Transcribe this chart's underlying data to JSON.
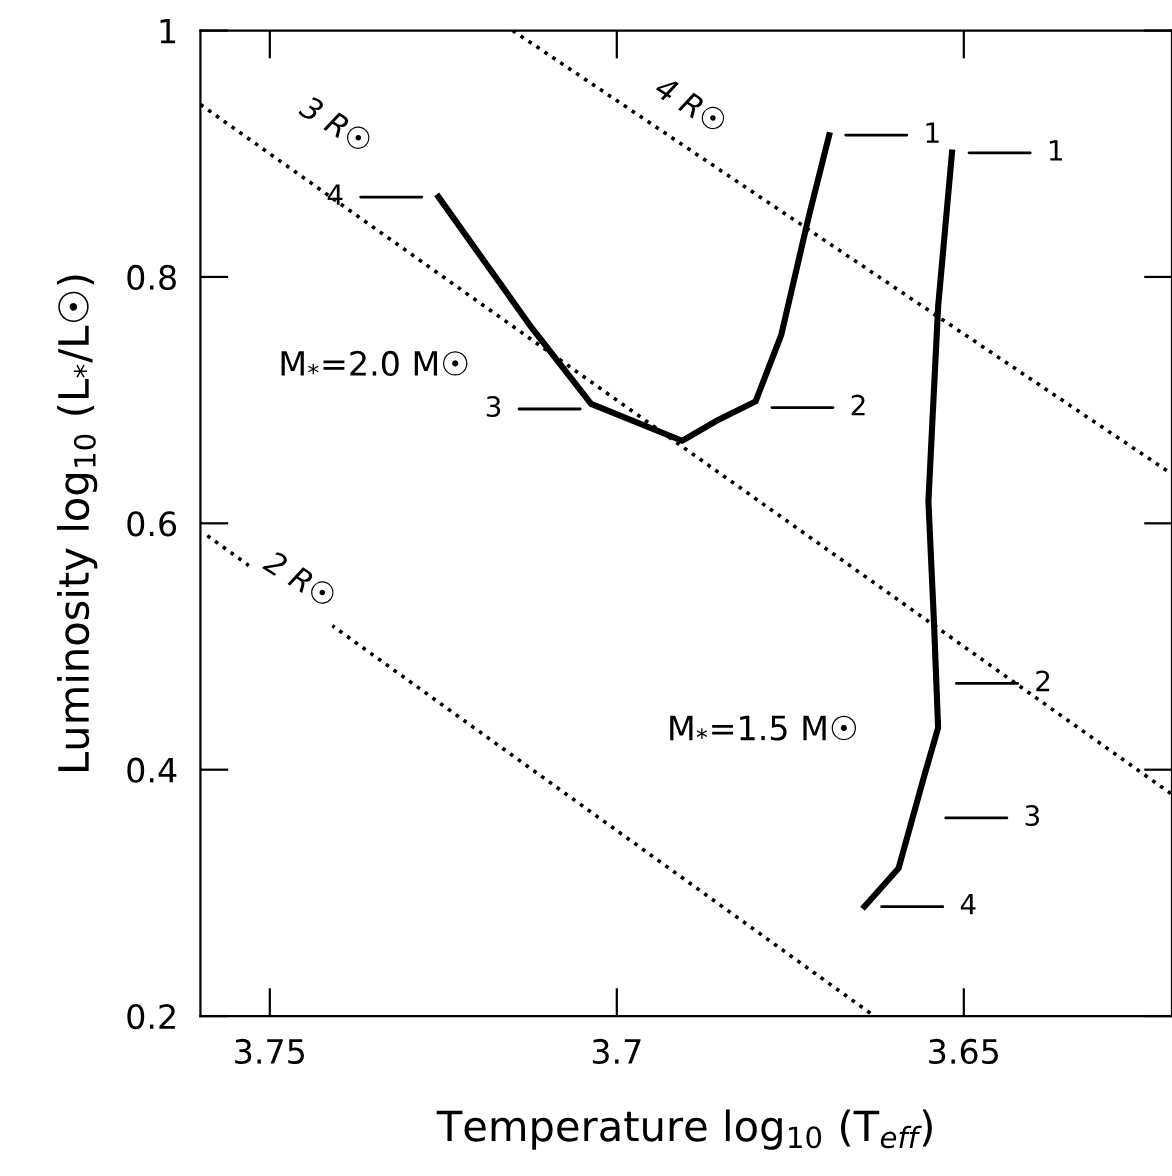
{
  "chart_data": {
    "type": "line",
    "xlabel": "Temperature log$_{10}$ (T$_{eff}$)",
    "ylabel": "Luminosity log$_{10}$ (L$_{*}$/L☉)",
    "xlim": [
      3.76,
      3.62
    ],
    "ylim": [
      0.2,
      1
    ],
    "xticks": [
      3.75,
      3.7,
      3.65
    ],
    "yticks": [
      0.2,
      0.4,
      0.6,
      0.8,
      1
    ],
    "grid": false,
    "legend": false,
    "marker": "none",
    "series": [
      {
        "color": "#000000",
        "line_style": "solid",
        "x": [
          3.7257,
          3.7123,
          3.7037,
          3.6906,
          3.6857,
          3.68,
          3.6763,
          3.6723,
          3.6694
        ],
        "values": [
          0.865,
          0.759,
          0.697,
          0.667,
          0.683,
          0.699,
          0.753,
          0.85,
          0.915
        ]
      },
      {
        "color": "#000000",
        "line_style": "solid",
        "x": [
          3.6517,
          3.6537,
          3.6551,
          3.6543,
          3.6537,
          3.6557,
          3.6594,
          3.6643
        ],
        "values": [
          0.901,
          0.776,
          0.618,
          0.52,
          0.434,
          0.395,
          0.32,
          0.289
        ]
      },
      {
        "color": "#000000",
        "line_style": "dotted",
        "x": [
          3.76,
          3.62
        ],
        "values": [
          0.94,
          0.38
        ]
      },
      {
        "color": "#000000",
        "line_style": "dotted",
        "x": [
          3.715,
          3.62
        ],
        "values": [
          1.0,
          0.64
        ]
      },
      {
        "color": "#000000",
        "line_style": "dotted",
        "x": [
          3.759,
          3.6629
        ],
        "values": [
          0.59,
          0.2
        ]
      }
    ],
    "annotations": [
      "1",
      "2",
      "3",
      "4",
      "1",
      "2",
      "3",
      "4",
      "M$_{*}$=2.0 M☉",
      "M$_{*}$=1.5 M☉",
      "3 R☉",
      "4 R☉",
      "2 R☉"
    ]
  }
}
